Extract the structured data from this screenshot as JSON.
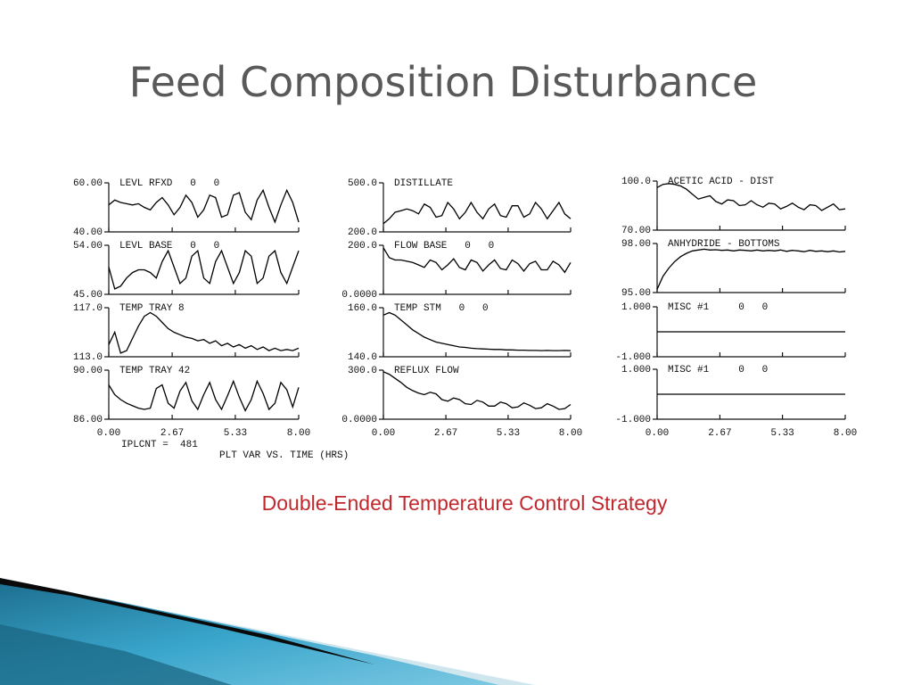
{
  "title": "Feed Composition Disturbance",
  "caption": "Double-Ended Temperature Control Strategy",
  "footer": {
    "counter": "IPLCNT =  481",
    "xlabel": "PLT VAR VS. TIME (HRS)"
  },
  "chart_data": [
    {
      "type": "line",
      "title": "LEVL RFXD   0   0",
      "color": "#000000",
      "xlim": [
        0,
        8
      ],
      "ylim": [
        40,
        60
      ],
      "yticks": [
        {
          "value": 40,
          "label": "40.00"
        },
        {
          "value": 60,
          "label": "60.00"
        }
      ],
      "x": [
        0,
        0.25,
        0.5,
        0.75,
        1,
        1.25,
        1.5,
        1.75,
        2,
        2.25,
        2.5,
        2.75,
        3,
        3.25,
        3.5,
        3.75,
        4,
        4.25,
        4.5,
        4.75,
        5,
        5.25,
        5.5,
        5.75,
        6,
        6.25,
        6.5,
        6.75,
        7,
        7.25,
        7.5,
        7.75,
        8
      ],
      "values": [
        51,
        53,
        52,
        51.5,
        51,
        51.5,
        50,
        49,
        52,
        54,
        51,
        47,
        50,
        55,
        52,
        46,
        49,
        55,
        54,
        46,
        47,
        55,
        56,
        48,
        45,
        53,
        57,
        50,
        44,
        51,
        57,
        52,
        44
      ]
    },
    {
      "type": "line",
      "title": "LEVL BASE   0   0",
      "color": "#000000",
      "xlim": [
        0,
        8
      ],
      "ylim": [
        45,
        54
      ],
      "yticks": [
        {
          "value": 45,
          "label": "45.00"
        },
        {
          "value": 54,
          "label": "54.00"
        }
      ],
      "x": [
        0,
        0.25,
        0.5,
        0.75,
        1,
        1.25,
        1.5,
        1.75,
        2,
        2.25,
        2.5,
        2.75,
        3,
        3.25,
        3.5,
        3.75,
        4,
        4.25,
        4.5,
        4.75,
        5,
        5.25,
        5.5,
        5.75,
        6,
        6.25,
        6.5,
        6.75,
        7,
        7.25,
        7.5,
        7.75,
        8
      ],
      "values": [
        50,
        46,
        46.5,
        48,
        49,
        49.5,
        49.5,
        49,
        48,
        51,
        53,
        50,
        47,
        48,
        52,
        53,
        48,
        47,
        51,
        53,
        50,
        47,
        49,
        53,
        52,
        47,
        48,
        52,
        53,
        49,
        47,
        50,
        53
      ]
    },
    {
      "type": "line",
      "title": "TEMP TRAY 8",
      "color": "#000000",
      "xlim": [
        0,
        8
      ],
      "ylim": [
        113,
        117
      ],
      "yticks": [
        {
          "value": 113,
          "label": "113.0"
        },
        {
          "value": 117,
          "label": "117.0"
        }
      ],
      "x": [
        0,
        0.25,
        0.5,
        0.75,
        1,
        1.25,
        1.5,
        1.75,
        2,
        2.25,
        2.5,
        2.75,
        3,
        3.25,
        3.5,
        3.75,
        4,
        4.25,
        4.5,
        4.75,
        5,
        5.25,
        5.5,
        5.75,
        6,
        6.25,
        6.5,
        6.75,
        7,
        7.25,
        7.5,
        7.75,
        8
      ],
      "values": [
        114,
        115,
        113.3,
        113.5,
        114.5,
        115.5,
        116.3,
        116.6,
        116.3,
        115.8,
        115.3,
        115,
        114.8,
        114.6,
        114.5,
        114.3,
        114.4,
        114.1,
        114.3,
        113.9,
        114.1,
        113.8,
        114,
        113.7,
        113.9,
        113.6,
        113.8,
        113.5,
        113.7,
        113.5,
        113.6,
        113.5,
        113.7
      ]
    },
    {
      "type": "line",
      "title": "TEMP TRAY 42",
      "color": "#000000",
      "xlim": [
        0,
        8
      ],
      "ylim": [
        86,
        90
      ],
      "yticks": [
        {
          "value": 86,
          "label": "86.00"
        },
        {
          "value": 90,
          "label": "90.00"
        }
      ],
      "xticks": [
        {
          "value": 0,
          "label": "0.00"
        },
        2.67,
        5.33,
        {
          "value": 8,
          "label": "8.00"
        }
      ],
      "x": [
        0,
        0.25,
        0.5,
        0.75,
        1,
        1.25,
        1.5,
        1.75,
        2,
        2.25,
        2.5,
        2.75,
        3,
        3.25,
        3.5,
        3.75,
        4,
        4.25,
        4.5,
        4.75,
        5,
        5.25,
        5.5,
        5.75,
        6,
        6.25,
        6.5,
        6.75,
        7,
        7.25,
        7.5,
        7.75,
        8
      ],
      "values": [
        88.8,
        88,
        87.6,
        87.3,
        87.1,
        86.9,
        86.8,
        86.9,
        88.5,
        88.8,
        87.3,
        86.9,
        88.3,
        89,
        87.5,
        86.8,
        88,
        89,
        87.6,
        86.8,
        87.9,
        89.1,
        87.8,
        86.7,
        87.6,
        89.1,
        88.1,
        86.8,
        87.3,
        89,
        88.4,
        87,
        88.6
      ]
    },
    {
      "type": "line",
      "title": "DISTILLATE",
      "color": "#000000",
      "xlim": [
        0,
        8
      ],
      "ylim": [
        200,
        500
      ],
      "yticks": [
        {
          "value": 200,
          "label": "200.0"
        },
        {
          "value": 500,
          "label": "500.0"
        }
      ],
      "x": [
        0,
        0.25,
        0.5,
        0.75,
        1,
        1.25,
        1.5,
        1.75,
        2,
        2.25,
        2.5,
        2.75,
        3,
        3.25,
        3.5,
        3.75,
        4,
        4.25,
        4.5,
        4.75,
        5,
        5.25,
        5.5,
        5.75,
        6,
        6.25,
        6.5,
        6.75,
        7,
        7.25,
        7.5,
        7.75,
        8
      ],
      "values": [
        250,
        280,
        320,
        330,
        340,
        330,
        310,
        370,
        350,
        290,
        300,
        380,
        340,
        280,
        320,
        380,
        320,
        280,
        340,
        370,
        300,
        290,
        360,
        360,
        290,
        310,
        380,
        340,
        280,
        330,
        380,
        310,
        280
      ]
    },
    {
      "type": "line",
      "title": "FLOW BASE   0   0",
      "color": "#000000",
      "xlim": [
        0,
        8
      ],
      "ylim": [
        0,
        200
      ],
      "yticks": [
        {
          "value": 0,
          "label": "0.0000"
        },
        {
          "value": 200,
          "label": "200.0"
        }
      ],
      "x": [
        0,
        0.25,
        0.5,
        0.75,
        1,
        1.25,
        1.5,
        1.75,
        2,
        2.25,
        2.5,
        2.75,
        3,
        3.25,
        3.5,
        3.75,
        4,
        4.25,
        4.5,
        4.75,
        5,
        5.25,
        5.5,
        5.75,
        6,
        6.25,
        6.5,
        6.75,
        7,
        7.25,
        7.5,
        7.75,
        8
      ],
      "values": [
        190,
        150,
        140,
        140,
        135,
        130,
        120,
        110,
        140,
        130,
        100,
        120,
        145,
        110,
        100,
        140,
        130,
        95,
        120,
        140,
        105,
        100,
        140,
        125,
        95,
        125,
        135,
        100,
        100,
        135,
        120,
        90,
        130
      ]
    },
    {
      "type": "line",
      "title": "TEMP STM   0   0",
      "color": "#000000",
      "xlim": [
        0,
        8
      ],
      "ylim": [
        140,
        160
      ],
      "yticks": [
        {
          "value": 140,
          "label": "140.0"
        },
        {
          "value": 160,
          "label": "160.0"
        }
      ],
      "x": [
        0,
        0.25,
        0.5,
        0.75,
        1,
        1.25,
        1.5,
        1.75,
        2,
        2.25,
        2.5,
        2.75,
        3,
        3.25,
        3.5,
        3.75,
        4,
        4.25,
        4.5,
        4.75,
        5,
        5.25,
        5.5,
        5.75,
        6,
        6.25,
        6.5,
        6.75,
        7,
        7.25,
        7.5,
        7.75,
        8
      ],
      "values": [
        157,
        158,
        157,
        155,
        153,
        151,
        149.5,
        148,
        147,
        146,
        145.5,
        145,
        144.5,
        144,
        143.8,
        143.5,
        143.3,
        143.2,
        143.1,
        143,
        143,
        142.8,
        142.8,
        142.7,
        142.7,
        142.6,
        142.6,
        142.5,
        142.6,
        142.5,
        142.5,
        142.6,
        142.5
      ]
    },
    {
      "type": "line",
      "title": "REFLUX FLOW",
      "color": "#000000",
      "xlim": [
        0,
        8
      ],
      "ylim": [
        0,
        300
      ],
      "yticks": [
        {
          "value": 0,
          "label": "0.0000"
        },
        {
          "value": 300,
          "label": "300.0"
        }
      ],
      "xticks": [
        {
          "value": 0,
          "label": "0.00"
        },
        2.67,
        5.33,
        {
          "value": 8,
          "label": "8.00"
        }
      ],
      "x": [
        0,
        0.25,
        0.5,
        0.75,
        1,
        1.25,
        1.5,
        1.75,
        2,
        2.25,
        2.5,
        2.75,
        3,
        3.25,
        3.5,
        3.75,
        4,
        4.25,
        4.5,
        4.75,
        5,
        5.25,
        5.5,
        5.75,
        6,
        6.25,
        6.5,
        6.75,
        7,
        7.25,
        7.5,
        7.75,
        8
      ],
      "values": [
        290,
        275,
        250,
        225,
        195,
        175,
        160,
        150,
        165,
        155,
        120,
        110,
        130,
        120,
        95,
        90,
        115,
        105,
        80,
        80,
        105,
        95,
        70,
        75,
        100,
        85,
        65,
        70,
        95,
        80,
        60,
        65,
        90
      ]
    },
    {
      "type": "line",
      "title": "ACETIC ACID - DIST",
      "color": "#000000",
      "xlim": [
        0,
        8
      ],
      "ylim": [
        70,
        100
      ],
      "yticks": [
        {
          "value": 70,
          "label": "70.00"
        },
        {
          "value": 100,
          "label": "100.0"
        }
      ],
      "x": [
        0,
        0.25,
        0.5,
        0.75,
        1,
        1.25,
        1.5,
        1.75,
        2,
        2.25,
        2.5,
        2.75,
        3,
        3.25,
        3.5,
        3.75,
        4,
        4.25,
        4.5,
        4.75,
        5,
        5.25,
        5.5,
        5.75,
        6,
        6.25,
        6.5,
        6.75,
        7,
        7.25,
        7.5,
        7.75,
        8
      ],
      "values": [
        96,
        98,
        98.5,
        98,
        97,
        95,
        92,
        89,
        90,
        91,
        87.5,
        86,
        88.5,
        88,
        85,
        85.5,
        88,
        85.5,
        84,
        86.5,
        86,
        83,
        84.5,
        86.5,
        84,
        82.5,
        85.5,
        85,
        82,
        84,
        86,
        82.5,
        83
      ]
    },
    {
      "type": "line",
      "title": "ANHYDRIDE - BOTTOMS",
      "color": "#000000",
      "xlim": [
        0,
        8
      ],
      "ylim": [
        95,
        98
      ],
      "yticks": [
        {
          "value": 95,
          "label": "95.00"
        },
        {
          "value": 98,
          "label": "98.00"
        }
      ],
      "x": [
        0,
        0.25,
        0.5,
        0.75,
        1,
        1.25,
        1.5,
        1.75,
        2,
        2.25,
        2.5,
        2.75,
        3,
        3.25,
        3.5,
        3.75,
        4,
        4.25,
        4.5,
        4.75,
        5,
        5.25,
        5.5,
        5.75,
        6,
        6.25,
        6.5,
        6.75,
        7,
        7.25,
        7.5,
        7.75,
        8
      ],
      "values": [
        95.2,
        96,
        96.5,
        96.9,
        97.2,
        97.4,
        97.55,
        97.6,
        97.65,
        97.6,
        97.62,
        97.58,
        97.6,
        97.55,
        97.6,
        97.58,
        97.55,
        97.6,
        97.55,
        97.58,
        97.55,
        97.6,
        97.52,
        97.58,
        97.55,
        97.5,
        97.58,
        97.52,
        97.55,
        97.5,
        97.55,
        97.48,
        97.52
      ]
    },
    {
      "type": "line",
      "title": "MISC #1     0   0",
      "color": "#000000",
      "xlim": [
        0,
        8
      ],
      "ylim": [
        -1,
        1
      ],
      "yticks": [
        {
          "value": -1,
          "label": "-1.000"
        },
        {
          "value": 1,
          "label": "1.000"
        }
      ],
      "x": [
        0,
        8
      ],
      "values": [
        0,
        0
      ]
    },
    {
      "type": "line",
      "title": "MISC #1     0   0",
      "color": "#000000",
      "xlim": [
        0,
        8
      ],
      "ylim": [
        -1,
        1
      ],
      "yticks": [
        {
          "value": -1,
          "label": "-1.000"
        },
        {
          "value": 1,
          "label": "1.000"
        }
      ],
      "xticks": [
        {
          "value": 0,
          "label": "0.00"
        },
        2.67,
        5.33,
        {
          "value": 8,
          "label": "8.00"
        }
      ],
      "x": [
        0,
        8
      ],
      "values": [
        0,
        0
      ]
    }
  ]
}
